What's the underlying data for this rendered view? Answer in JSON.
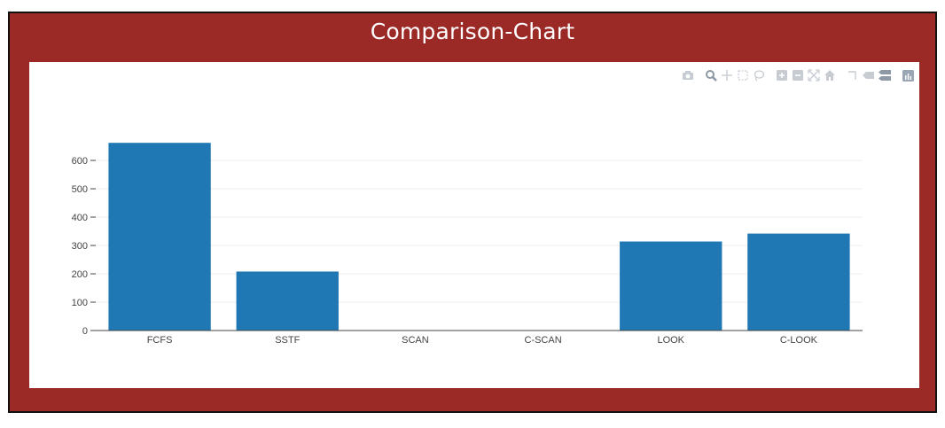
{
  "title": "Comparison-Chart",
  "modebar": {
    "buttons": [
      "camera-icon",
      "zoom-icon",
      "pan-icon",
      "box-select-icon",
      "lasso-select-icon",
      "zoom-in-icon",
      "zoom-out-icon",
      "autoscale-icon",
      "reset-axes-icon",
      "spike-lines-icon",
      "hover-closest-icon",
      "hover-compare-icon",
      "plotly-logo-icon"
    ]
  },
  "colors": {
    "frame": "#9b2a27",
    "bar": "#1f77b4",
    "grid": "#eeeeee"
  },
  "chart_data": {
    "type": "bar",
    "categories": [
      "FCFS",
      "SSTF",
      "SCAN",
      "C-SCAN",
      "LOOK",
      "C-LOOK"
    ],
    "values": [
      662,
      208,
      0,
      0,
      314,
      342
    ],
    "yticks": [
      0,
      100,
      200,
      300,
      400,
      500,
      600
    ],
    "ylim": [
      0,
      697
    ],
    "grid": true,
    "legend": "none"
  }
}
